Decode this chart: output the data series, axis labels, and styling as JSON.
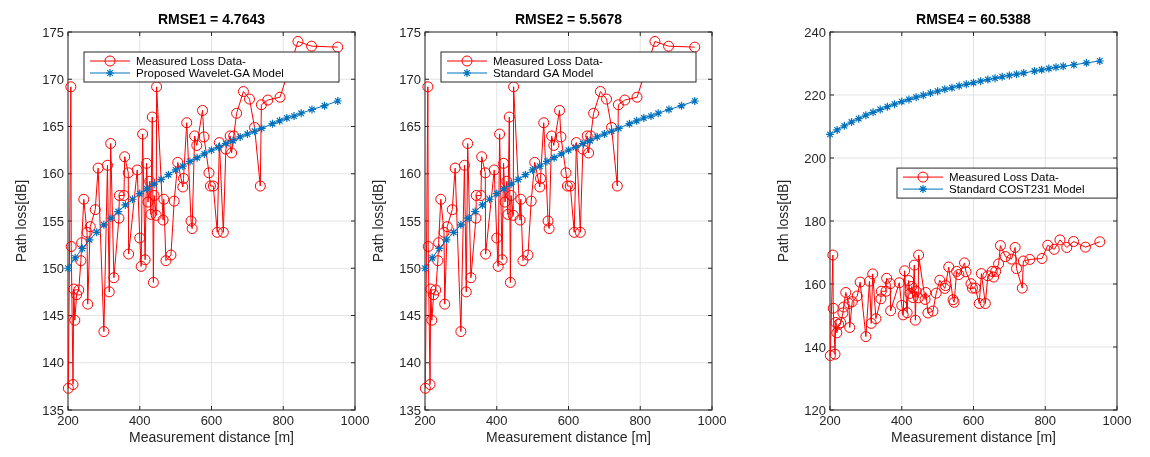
{
  "chart_data": [
    {
      "type": "line",
      "title": "RMSE1 = 4.7643",
      "xlabel": "Measurement distance [m]",
      "ylabel": "Path loss[dB]",
      "xlim": [
        200,
        1000
      ],
      "xticks": [
        200,
        400,
        600,
        800,
        1000
      ],
      "ylim": [
        135,
        175
      ],
      "yticks": [
        135,
        140,
        145,
        150,
        155,
        160,
        165,
        170,
        175
      ],
      "grid": true,
      "legend": "top",
      "series": [
        {
          "name": "Measured Loss Data-",
          "color": "#ff0000",
          "marker": "circle",
          "x": [
            201,
            208,
            209,
            214,
            216,
            219,
            224,
            230,
            236,
            238,
            244,
            253,
            255,
            262,
            276,
            284,
            300,
            310,
            315,
            319,
            328,
            342,
            343,
            356,
            358,
            368,
            369,
            393,
            400,
            404,
            408,
            415,
            419,
            423,
            428,
            431,
            435,
            438,
            440,
            446,
            447,
            465,
            467,
            473,
            487,
            496,
            506,
            520,
            522,
            531,
            543,
            546,
            553,
            559,
            575,
            579,
            593,
            597,
            605,
            616,
            622,
            633,
            640,
            652,
            656,
            662,
            670,
            675,
            689,
            706,
            716,
            720,
            736,
            739,
            757,
            791,
            807,
            825,
            841,
            860,
            879,
            912,
            952
          ],
          "values": [
            137.3,
            169.2,
            152.3,
            137.7,
            147.8,
            144.5,
            147.2,
            147.7,
            150.8,
            152.7,
            157.3,
            153.8,
            146.2,
            154.4,
            156.2,
            160.6,
            143.3,
            160.9,
            147.5,
            163.2,
            149.0,
            155.3,
            157.7,
            157.7,
            161.8,
            160.1,
            151.5,
            160.4,
            153.2,
            150.2,
            164.2,
            150.9,
            161.1,
            157.0,
            159.2,
            155.7,
            166.0,
            148.5,
            157.7,
            155.6,
            169.2,
            155.1,
            157.3,
            150.8,
            151.4,
            157.1,
            161.2,
            158.6,
            159.5,
            165.4,
            155.0,
            154.2,
            164.0,
            163.0,
            166.7,
            163.9,
            160.1,
            158.7,
            158.7,
            153.8,
            163.3,
            153.8,
            162.6,
            164.0,
            162.2,
            164.0,
            166.4,
            null,
            168.7,
            167.9,
            null,
            164.9,
            158.7,
            167.3,
            167.8,
            168.1,
            null,
            null,
            174.0,
            null,
            173.5,
            null,
            173.4
          ]
        },
        {
          "name": "Proposed Wavelet-GA Model",
          "color": "#0072bd",
          "marker": "cross",
          "x": [
            200,
            220,
            240,
            260,
            280,
            300,
            320,
            340,
            360,
            380,
            400,
            420,
            440,
            460,
            480,
            500,
            520,
            540,
            560,
            580,
            600,
            620,
            640,
            660,
            680,
            700,
            720,
            740,
            770,
            790,
            810,
            830,
            850,
            880,
            915,
            952
          ],
          "values": [
            150.0,
            151.1,
            152.1,
            153.0,
            153.8,
            154.6,
            155.3,
            156.0,
            156.7,
            157.3,
            157.9,
            158.4,
            158.9,
            159.4,
            159.9,
            160.4,
            160.8,
            161.3,
            161.7,
            162.1,
            162.5,
            162.8,
            163.2,
            163.5,
            163.9,
            164.2,
            164.5,
            164.8,
            165.3,
            165.6,
            165.9,
            166.1,
            166.4,
            166.8,
            167.2,
            167.7
          ]
        }
      ]
    },
    {
      "type": "line",
      "title": "RMSE2 = 5.5678",
      "xlabel": "Measurement distance [m]",
      "ylabel": "Path loss[dB]",
      "xlim": [
        200,
        1000
      ],
      "xticks": [
        200,
        400,
        600,
        800,
        1000
      ],
      "ylim": [
        135,
        175
      ],
      "yticks": [
        135,
        140,
        145,
        150,
        155,
        160,
        165,
        170,
        175
      ],
      "grid": true,
      "legend": "top",
      "series": [
        {
          "name": "Measured Loss Data-",
          "color": "#ff0000",
          "marker": "circle",
          "x": [
            201,
            208,
            209,
            214,
            216,
            219,
            224,
            230,
            236,
            238,
            244,
            253,
            255,
            262,
            276,
            284,
            300,
            310,
            315,
            319,
            328,
            342,
            343,
            356,
            358,
            368,
            369,
            393,
            400,
            404,
            408,
            415,
            419,
            423,
            428,
            431,
            435,
            438,
            440,
            446,
            447,
            465,
            467,
            473,
            487,
            496,
            506,
            520,
            522,
            531,
            543,
            546,
            553,
            559,
            575,
            579,
            593,
            597,
            605,
            616,
            622,
            633,
            640,
            652,
            656,
            662,
            670,
            675,
            689,
            706,
            716,
            720,
            736,
            739,
            757,
            791,
            807,
            825,
            841,
            860,
            879,
            912,
            952
          ],
          "values": [
            137.3,
            169.2,
            152.3,
            137.7,
            147.8,
            144.5,
            147.2,
            147.7,
            150.8,
            152.7,
            157.3,
            153.8,
            146.2,
            154.4,
            156.2,
            160.6,
            143.3,
            160.9,
            147.5,
            163.2,
            149.0,
            155.3,
            157.7,
            157.7,
            161.8,
            160.1,
            151.5,
            160.4,
            153.2,
            150.2,
            164.2,
            150.9,
            161.1,
            157.0,
            159.2,
            155.7,
            166.0,
            148.5,
            157.7,
            155.6,
            169.2,
            155.1,
            157.3,
            150.8,
            151.4,
            157.1,
            161.2,
            158.6,
            159.5,
            165.4,
            155.0,
            154.2,
            164.0,
            163.0,
            166.7,
            163.9,
            160.1,
            158.7,
            158.7,
            153.8,
            163.3,
            153.8,
            162.6,
            164.0,
            162.2,
            164.0,
            166.4,
            null,
            168.7,
            167.9,
            null,
            164.9,
            158.7,
            167.3,
            167.8,
            168.1,
            null,
            null,
            174.0,
            null,
            173.5,
            null,
            173.4
          ]
        },
        {
          "name": "Standard GA Model",
          "color": "#0072bd",
          "marker": "cross",
          "x": [
            200,
            220,
            240,
            260,
            280,
            300,
            320,
            340,
            360,
            380,
            400,
            420,
            440,
            460,
            480,
            500,
            520,
            540,
            560,
            580,
            600,
            620,
            640,
            660,
            680,
            700,
            720,
            740,
            770,
            790,
            810,
            830,
            850,
            880,
            915,
            952
          ],
          "values": [
            150.0,
            151.1,
            152.1,
            153.0,
            153.8,
            154.6,
            155.3,
            156.0,
            156.7,
            157.3,
            157.9,
            158.4,
            158.9,
            159.4,
            159.9,
            160.4,
            160.8,
            161.3,
            161.7,
            162.1,
            162.5,
            162.8,
            163.2,
            163.5,
            163.9,
            164.2,
            164.5,
            164.8,
            165.3,
            165.6,
            165.9,
            166.1,
            166.4,
            166.8,
            167.2,
            167.7
          ]
        }
      ]
    },
    {
      "type": "line",
      "title": "RMSE4 = 60.5388",
      "xlabel": "Measurement distance [m]",
      "ylabel": "Path loss[dB]",
      "xlim": [
        200,
        1000
      ],
      "xticks": [
        200,
        400,
        600,
        800,
        1000
      ],
      "ylim": [
        120,
        240
      ],
      "yticks": [
        120,
        140,
        160,
        180,
        200,
        220,
        240
      ],
      "grid": true,
      "legend": "right",
      "series": [
        {
          "name": "Measured Loss Data-",
          "color": "#ff0000",
          "marker": "circle",
          "x": [
            201,
            208,
            209,
            214,
            216,
            219,
            224,
            230,
            236,
            238,
            244,
            253,
            255,
            262,
            276,
            284,
            300,
            310,
            315,
            319,
            328,
            342,
            343,
            356,
            358,
            368,
            369,
            393,
            400,
            404,
            408,
            415,
            419,
            423,
            428,
            431,
            435,
            438,
            440,
            446,
            447,
            465,
            467,
            473,
            487,
            496,
            506,
            520,
            522,
            531,
            543,
            546,
            553,
            559,
            575,
            579,
            593,
            597,
            605,
            616,
            622,
            633,
            640,
            652,
            656,
            662,
            670,
            675,
            689,
            706,
            716,
            720,
            736,
            739,
            757,
            791,
            807,
            825,
            841,
            860,
            879,
            912,
            952
          ],
          "values": [
            137.3,
            169.2,
            152.3,
            137.7,
            147.8,
            144.5,
            147.2,
            147.7,
            150.8,
            152.7,
            157.3,
            153.8,
            146.2,
            154.4,
            156.2,
            160.6,
            143.3,
            160.9,
            147.5,
            163.2,
            149.0,
            155.3,
            157.7,
            157.7,
            161.8,
            160.1,
            151.5,
            160.4,
            153.2,
            150.2,
            164.2,
            150.9,
            161.1,
            157.0,
            159.2,
            155.7,
            166.0,
            148.5,
            157.7,
            155.6,
            169.2,
            155.1,
            157.3,
            150.8,
            151.4,
            157.1,
            161.2,
            158.6,
            159.5,
            165.4,
            155.0,
            154.2,
            164.0,
            163.0,
            166.7,
            163.9,
            160.1,
            158.7,
            158.7,
            153.8,
            163.3,
            153.8,
            162.6,
            164.0,
            162.2,
            164.0,
            166.4,
            172.2,
            168.7,
            167.9,
            171.6,
            164.9,
            158.7,
            167.3,
            167.8,
            168.1,
            172.3,
            171.0,
            174.0,
            171.6,
            173.5,
            171.7,
            173.4
          ]
        },
        {
          "name": "Standard COST231 Model",
          "color": "#0072bd",
          "marker": "cross",
          "x": [
            200,
            220,
            240,
            260,
            280,
            300,
            320,
            340,
            360,
            380,
            400,
            420,
            440,
            460,
            480,
            500,
            520,
            540,
            560,
            580,
            600,
            620,
            640,
            660,
            680,
            700,
            720,
            740,
            770,
            790,
            810,
            830,
            850,
            880,
            915,
            952
          ],
          "values": [
            207.5,
            208.9,
            210.2,
            211.4,
            212.5,
            213.6,
            214.5,
            215.4,
            216.3,
            217.1,
            217.9,
            218.6,
            219.3,
            219.9,
            220.6,
            221.2,
            221.8,
            222.3,
            222.9,
            223.4,
            223.9,
            224.4,
            224.9,
            225.3,
            225.8,
            226.2,
            226.6,
            227.0,
            227.6,
            228.0,
            228.4,
            228.8,
            229.1,
            229.6,
            230.2,
            230.8
          ]
        }
      ]
    }
  ]
}
